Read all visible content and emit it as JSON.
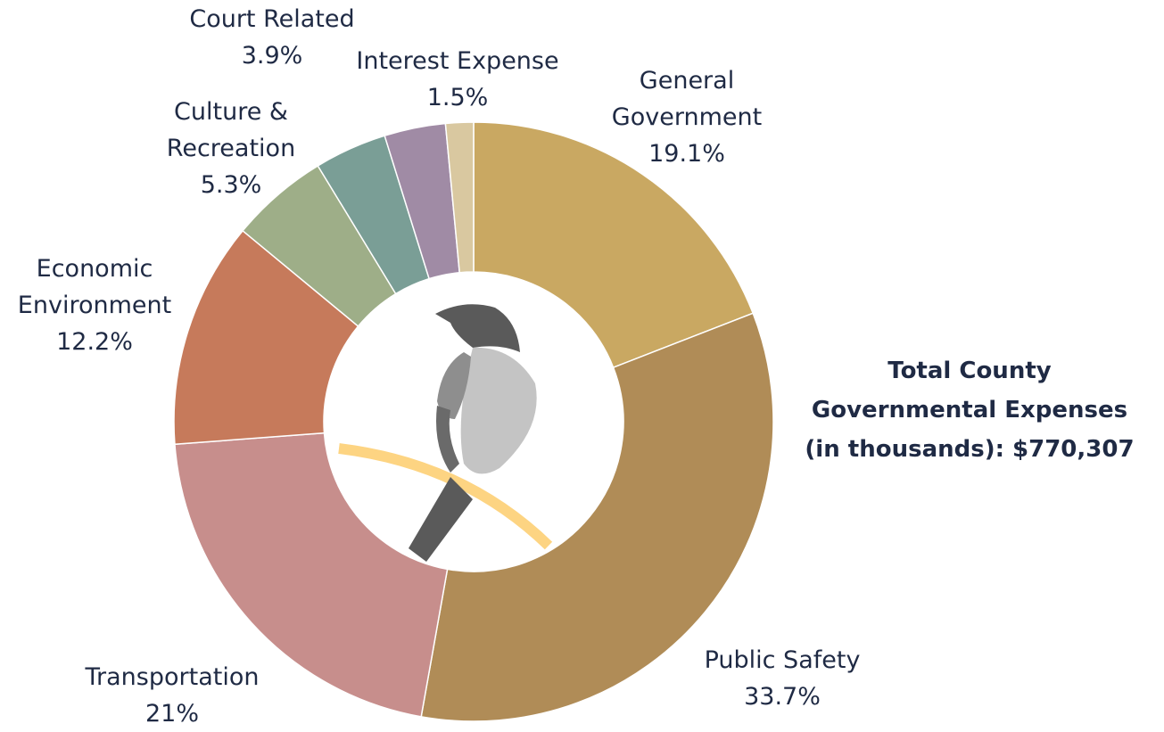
{
  "chart_data": {
    "type": "donut",
    "categories": [
      "General Government",
      "Public Safety",
      "Transportation",
      "Economic Environment",
      "Culture & Recreation",
      "Court Related",
      null,
      "Interest Expense"
    ],
    "values": [
      19.1,
      33.7,
      21,
      12.2,
      5.3,
      3.9,
      3.3,
      1.5
    ],
    "value_labels": [
      "19.1%",
      "33.7%",
      "21%",
      "12.2%",
      "5.3%",
      "3.9%",
      null,
      "1.5%"
    ],
    "colors": [
      "#c9a862",
      "#b08c57",
      "#c78e8c",
      "#c67a5b",
      "#9eae88",
      "#7a9e96",
      "#a08ba5",
      "#d9c8a0"
    ],
    "annotation": "Total County Governmental Expenses (in thousands): $770,307"
  }
}
